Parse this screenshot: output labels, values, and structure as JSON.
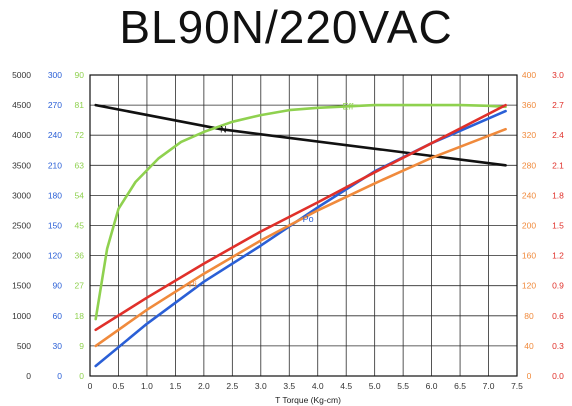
{
  "chart_data": {
    "type": "line",
    "title": "BL90N/220VAC",
    "xlabel": "T  Torque (Kg-cm)",
    "x_ticks": [
      "0",
      "0.5",
      "1.0",
      "1.5",
      "2.0",
      "2.5",
      "3.0",
      "3.5",
      "4.0",
      "4.5",
      "5.0",
      "5.5",
      "6.0",
      "6.5",
      "7.0",
      "7.5"
    ],
    "x_range": [
      0,
      7.5
    ],
    "grid": true,
    "axes": [
      {
        "id": "speed",
        "side": "left",
        "color": "#333333",
        "ticks": [
          "0",
          "500",
          "1000",
          "1500",
          "2000",
          "2500",
          "3000",
          "3500",
          "4000",
          "4500",
          "5000"
        ],
        "range": [
          0,
          5000
        ]
      },
      {
        "id": "power",
        "side": "left",
        "color": "#2a5fd6",
        "ticks": [
          "0",
          "30",
          "60",
          "90",
          "120",
          "150",
          "180",
          "210",
          "240",
          "270",
          "300"
        ],
        "range": [
          0,
          300
        ]
      },
      {
        "id": "eff",
        "side": "left",
        "color": "#8fd14f",
        "ticks": [
          "0",
          "9",
          "18",
          "27",
          "36",
          "45",
          "54",
          "63",
          "72",
          "81",
          "90"
        ],
        "range": [
          0,
          90
        ]
      },
      {
        "id": "input",
        "side": "right",
        "color": "#f08a3c",
        "ticks": [
          "0",
          "40",
          "80",
          "120",
          "160",
          "200",
          "240",
          "280",
          "320",
          "360",
          "400"
        ],
        "range": [
          0,
          400
        ]
      },
      {
        "id": "current",
        "side": "right",
        "color": "#e0302a",
        "ticks": [
          "0.0",
          "0.3",
          "0.6",
          "0.9",
          "1.2",
          "1.5",
          "1.8",
          "2.1",
          "2.4",
          "2.7",
          "3.0"
        ],
        "range": [
          0,
          3
        ]
      }
    ],
    "series": [
      {
        "name": "N",
        "axis": "speed",
        "color": "#111111",
        "x": [
          0.1,
          2.3,
          7.3
        ],
        "y": [
          4500,
          4100,
          3500
        ]
      },
      {
        "name": "Eff",
        "axis": "eff",
        "color": "#8fd14f",
        "x": [
          0.1,
          0.3,
          0.5,
          0.8,
          1.2,
          1.6,
          2.0,
          2.5,
          3.0,
          3.5,
          4.0,
          4.5,
          5.0,
          5.5,
          6.0,
          6.5,
          7.0,
          7.3
        ],
        "y": [
          17,
          38,
          50,
          58,
          65,
          70,
          73,
          76,
          78,
          79.5,
          80.2,
          80.6,
          81,
          81,
          81,
          81,
          80.8,
          80.5
        ]
      },
      {
        "name": "Po",
        "axis": "power",
        "color": "#2a5fd6",
        "x": [
          0.1,
          1.0,
          2.0,
          3.0,
          4.0,
          5.0,
          6.0,
          7.3
        ],
        "y": [
          10,
          52,
          94,
          130,
          168,
          204,
          232,
          264
        ]
      },
      {
        "name": "Pi",
        "axis": "input",
        "color": "#f08a3c",
        "x": [
          0.1,
          1.0,
          2.0,
          3.0,
          4.0,
          5.0,
          6.0,
          7.3
        ],
        "y": [
          40,
          88,
          136,
          180,
          220,
          256,
          290,
          328
        ]
      },
      {
        "name": "I",
        "axis": "current",
        "color": "#e0302a",
        "x": [
          0.1,
          1.0,
          2.0,
          3.0,
          4.0,
          5.0,
          6.0,
          7.3
        ],
        "y": [
          0.46,
          0.78,
          1.12,
          1.44,
          1.73,
          2.03,
          2.32,
          2.7
        ]
      }
    ],
    "annotations": [
      {
        "text": "N",
        "series": "N",
        "at_x": 2.25
      },
      {
        "text": "Eff",
        "series": "Eff",
        "at_x": 4.4
      },
      {
        "text": "Po",
        "series": "Po",
        "at_x": 3.7
      },
      {
        "text": "Pi",
        "series": "Pi",
        "at_x": 1.7
      }
    ]
  }
}
